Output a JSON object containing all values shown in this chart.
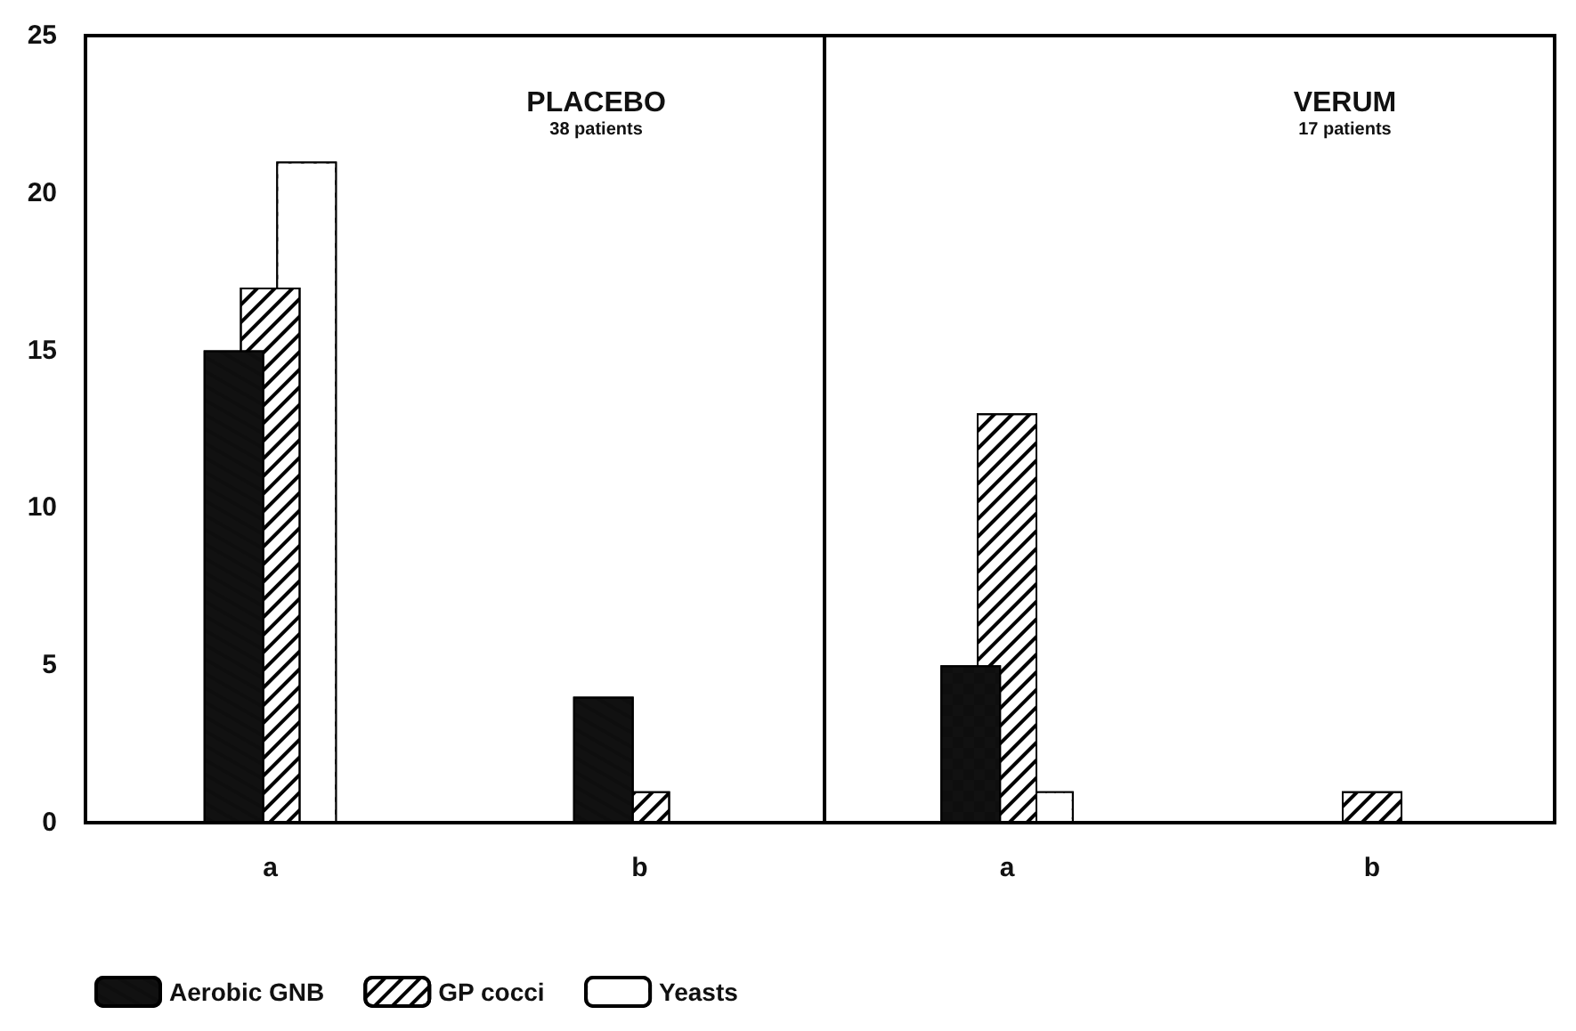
{
  "chart_data": [
    {
      "type": "bar",
      "title": "PLACEBO",
      "subtitle": "38 patients",
      "categories": [
        "a",
        "b"
      ],
      "series": [
        {
          "name": "Aerobic GNB",
          "color": "#111111",
          "values": [
            15,
            4
          ]
        },
        {
          "name": "GP cocci",
          "color": "#ffffff",
          "values": [
            17,
            1
          ]
        },
        {
          "name": "Yeasts",
          "color": "#ffffff",
          "values": [
            21,
            null
          ]
        }
      ],
      "ylim": [
        0,
        25
      ],
      "yticks": [
        0,
        5,
        10,
        15,
        20,
        25
      ],
      "grid": false,
      "legend": "bottom"
    },
    {
      "type": "bar",
      "title": "VERUM",
      "subtitle": "17 patients",
      "categories": [
        "a",
        "b"
      ],
      "series": [
        {
          "color": "#111111",
          "values": [
            5,
            null
          ]
        },
        {
          "color": "#ffffff",
          "values": [
            13,
            1
          ]
        },
        {
          "color": "#ffffff",
          "values": [
            1,
            null
          ]
        }
      ],
      "ylim": [
        0,
        25
      ],
      "yticks": [
        0,
        5,
        10,
        15,
        20,
        25
      ],
      "grid": false,
      "tick_labels": "x"
    }
  ]
}
